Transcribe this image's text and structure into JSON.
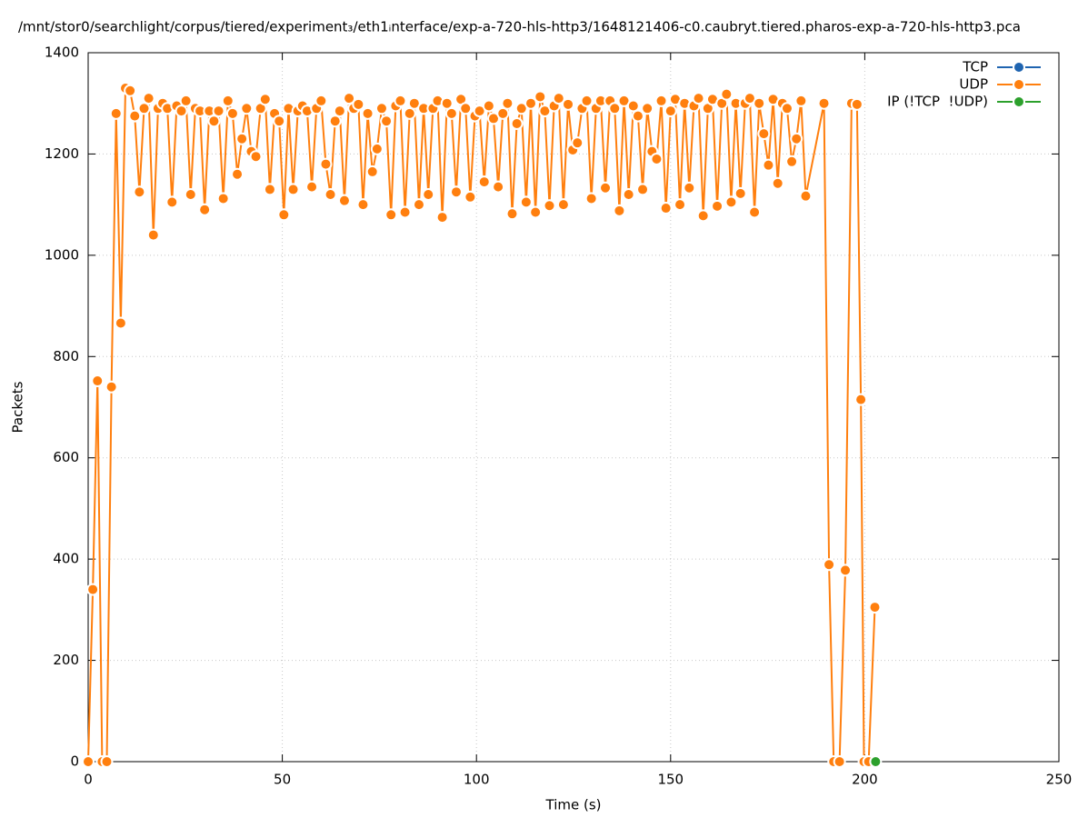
{
  "chart_data": {
    "type": "line",
    "title": "/mnt/stor0/searchlight/corpus/tiered/experiment₃/eth1ᵢnterface/exp-a-720-hls-http3/1648121406-c0.caubryt.tiered.pharos-exp-a-720-hls-http3.pca",
    "xlabel": "Time (s)",
    "ylabel": "Packets",
    "xlim": [
      0,
      250
    ],
    "xticks": [
      0,
      50,
      100,
      150,
      200,
      250
    ],
    "ylim": [
      0,
      1400
    ],
    "yticks": [
      0,
      200,
      400,
      600,
      800,
      1000,
      1200,
      1400
    ],
    "grid": true,
    "legend": "top-right",
    "series": [
      {
        "name": "TCP",
        "color": "#1f64b0",
        "x": [],
        "values": []
      },
      {
        "name": "UDP",
        "color": "#ff7f0e",
        "x": [
          0,
          1.2,
          2.4,
          3.6,
          4.8,
          6,
          7.2,
          8.4,
          9.6,
          10.8,
          12,
          13.2,
          14.4,
          15.6,
          16.8,
          18,
          19.2,
          20.4,
          21.6,
          22.8,
          24,
          25.2,
          26.4,
          27.6,
          28.8,
          30,
          31.2,
          32.4,
          33.6,
          34.8,
          36,
          37.2,
          38.4,
          39.6,
          40.8,
          42,
          43.2,
          44.4,
          45.6,
          46.8,
          48,
          49.2,
          50.4,
          51.6,
          52.8,
          54,
          55.2,
          56.4,
          57.6,
          58.8,
          60,
          61.2,
          62.4,
          63.6,
          64.8,
          66,
          67.2,
          68.4,
          69.6,
          70.8,
          72,
          73.2,
          74.4,
          75.6,
          76.8,
          78,
          79.2,
          80.4,
          81.6,
          82.8,
          84,
          85.2,
          86.4,
          87.6,
          88.8,
          90,
          91.2,
          92.4,
          93.6,
          94.8,
          96,
          97.2,
          98.4,
          99.6,
          100.8,
          102,
          103.2,
          104.4,
          105.6,
          106.8,
          108,
          109.2,
          110.4,
          111.6,
          112.8,
          114,
          115.2,
          116.4,
          117.6,
          118.8,
          120,
          121.2,
          122.4,
          123.6,
          124.8,
          126,
          127.2,
          128.4,
          129.6,
          130.8,
          132,
          133.2,
          134.4,
          135.6,
          136.8,
          138,
          139.2,
          140.4,
          141.6,
          142.8,
          144,
          145.2,
          146.4,
          147.6,
          148.8,
          150,
          151.2,
          152.4,
          153.6,
          154.8,
          156,
          157.2,
          158.4,
          159.6,
          160.8,
          162,
          163.2,
          164.4,
          165.6,
          166.8,
          168,
          169.2,
          170.4,
          171.6,
          172.8,
          174,
          175.2,
          176.4,
          177.6,
          178.8,
          180,
          181.2,
          182.4,
          183.6,
          184.8,
          189.5,
          190.8,
          192,
          193.5,
          195,
          196.6,
          198,
          199,
          199.8,
          201,
          202.6
        ],
        "values": [
          0,
          340,
          752,
          0,
          0,
          740,
          1280,
          866,
          1330,
          1325,
          1275,
          1125,
          1290,
          1310,
          1040,
          1290,
          1300,
          1290,
          1105,
          1295,
          1285,
          1305,
          1120,
          1290,
          1285,
          1090,
          1285,
          1265,
          1285,
          1112,
          1305,
          1280,
          1160,
          1230,
          1290,
          1205,
          1195,
          1290,
          1308,
          1130,
          1280,
          1265,
          1080,
          1290,
          1130,
          1285,
          1295,
          1285,
          1135,
          1290,
          1305,
          1180,
          1120,
          1265,
          1285,
          1108,
          1310,
          1290,
          1298,
          1100,
          1280,
          1165,
          1210,
          1290,
          1265,
          1080,
          1295,
          1305,
          1085,
          1280,
          1300,
          1100,
          1290,
          1120,
          1290,
          1305,
          1075,
          1300,
          1280,
          1125,
          1308,
          1290,
          1115,
          1275,
          1285,
          1145,
          1295,
          1270,
          1135,
          1280,
          1300,
          1082,
          1260,
          1290,
          1105,
          1300,
          1085,
          1313,
          1285,
          1098,
          1295,
          1310,
          1100,
          1298,
          1208,
          1222,
          1290,
          1305,
          1112,
          1290,
          1305,
          1133,
          1305,
          1290,
          1088,
          1305,
          1120,
          1295,
          1275,
          1130,
          1290,
          1205,
          1190,
          1305,
          1093,
          1285,
          1308,
          1100,
          1300,
          1133,
          1295,
          1310,
          1078,
          1290,
          1308,
          1097,
          1300,
          1318,
          1105,
          1300,
          1122,
          1300,
          1310,
          1085,
          1300,
          1240,
          1178,
          1308,
          1142,
          1300,
          1290,
          1185,
          1230,
          1305,
          1117,
          1300,
          389,
          0,
          0,
          378,
          1300,
          1298,
          715,
          0,
          0,
          305
        ]
      },
      {
        "name": "IP (!TCP  !UDP)",
        "color": "#2ca02c",
        "x": [
          202.8
        ],
        "values": [
          0
        ]
      }
    ]
  }
}
